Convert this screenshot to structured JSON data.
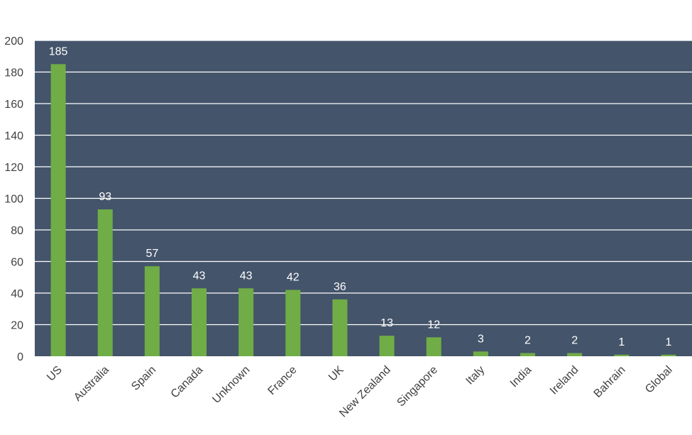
{
  "chart_data": {
    "type": "bar",
    "title": "",
    "xlabel": "",
    "ylabel": "",
    "categories": [
      "US",
      "Australia",
      "Spain",
      "Canada",
      "Unknown",
      "France",
      "UK",
      "New Zealand",
      "Singapore",
      "Italy",
      "India",
      "Ireland",
      "Bahrain",
      "Global"
    ],
    "values": [
      185,
      93,
      57,
      43,
      43,
      42,
      36,
      13,
      12,
      3,
      2,
      2,
      1,
      1
    ],
    "ylim": [
      0,
      200
    ],
    "yticks": [
      0,
      20,
      40,
      60,
      80,
      100,
      120,
      140,
      160,
      180,
      200
    ],
    "grid": true,
    "legend": "none",
    "data_labels": true,
    "colors": {
      "plot_background": "#44546a",
      "bar": "#70ad47",
      "gridline": "#ffffff",
      "data_label": "#ffffff",
      "tick_label": "#404040"
    }
  }
}
